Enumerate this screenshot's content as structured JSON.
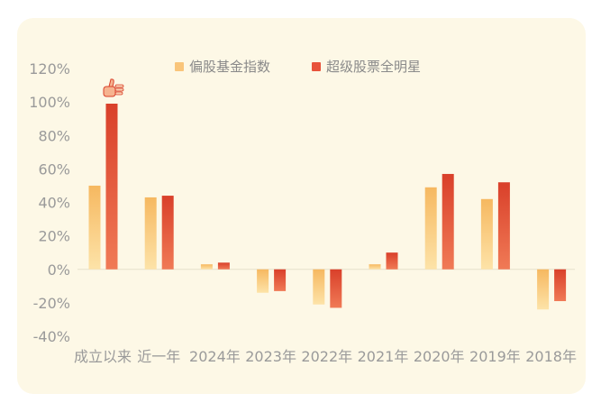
{
  "chart_data": {
    "type": "bar",
    "categories": [
      "成立以来",
      "近一年",
      "2024年",
      "2023年",
      "2022年",
      "2021年",
      "2020年",
      "2019年",
      "2018年"
    ],
    "series": [
      {
        "name": "偏股基金指数",
        "color": "#f9c57a",
        "values": [
          50,
          43,
          3,
          -14,
          -21,
          3,
          49,
          42,
          -24
        ]
      },
      {
        "name": "超级股票全明星",
        "color": "#e8533b",
        "values": [
          99,
          44,
          4,
          -13,
          -23,
          10,
          57,
          52,
          -19
        ]
      }
    ],
    "y_ticks": [
      "120%",
      "100%",
      "80%",
      "60%",
      "40%",
      "20%",
      "0%",
      "-20%",
      "-40%"
    ],
    "ylim": [
      -40,
      120
    ],
    "grid": false,
    "legend_position": "top-center",
    "annotation_icon": "thumbs-up-icon"
  }
}
